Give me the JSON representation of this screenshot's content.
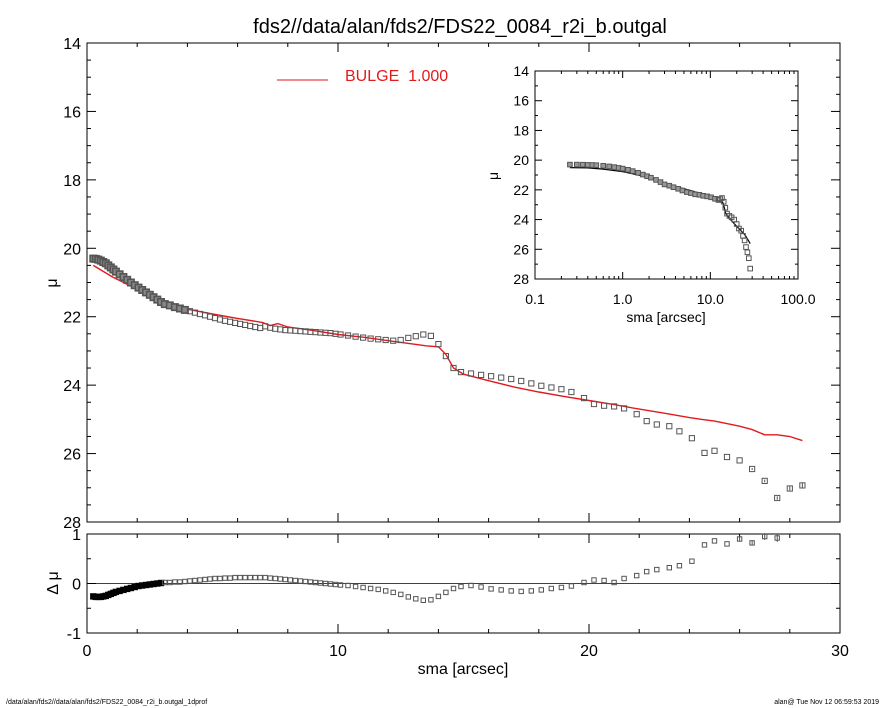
{
  "title": "fds2//data/alan/fds2/FDS22_0084_r2i_b.outgal",
  "footer": {
    "left": "/data/alan/fds2//data/alan/fds2/FDS22_0084_r2i_b.outgal_1dprof",
    "right": "alan@  Tue Nov 12 06:59:53 2019"
  },
  "colors": {
    "model": "#e31a1c",
    "data": "#555555",
    "axis": "#000000"
  },
  "chart_data": [
    {
      "name": "main-profile",
      "type": "scatter",
      "xlabel": "",
      "ylabel": "μ",
      "xlim": [
        0,
        30
      ],
      "ylim": [
        28,
        14
      ],
      "y_inverted": true,
      "yticks": [
        "14",
        "16",
        "18",
        "20",
        "22",
        "24",
        "26",
        "28"
      ],
      "legend": {
        "label": "BULGE  1.000",
        "placement": "top-center"
      },
      "series": [
        {
          "name": "data",
          "marker": "open-square",
          "x": [
            0.25,
            0.35,
            0.45,
            0.55,
            0.65,
            0.75,
            0.85,
            0.95,
            1.05,
            1.15,
            1.3,
            1.45,
            1.6,
            1.75,
            1.9,
            2.05,
            2.2,
            2.35,
            2.5,
            2.65,
            2.8,
            2.95,
            3.1,
            3.3,
            3.5,
            3.7,
            3.9,
            4.1,
            4.3,
            4.5,
            4.7,
            4.9,
            5.1,
            5.3,
            5.5,
            5.7,
            5.9,
            6.1,
            6.3,
            6.5,
            6.7,
            6.9,
            7.1,
            7.3,
            7.5,
            7.7,
            7.9,
            8.1,
            8.3,
            8.5,
            8.7,
            8.9,
            9.1,
            9.3,
            9.5,
            9.7,
            9.9,
            10.1,
            10.4,
            10.7,
            11.0,
            11.3,
            11.6,
            11.9,
            12.2,
            12.5,
            12.8,
            13.1,
            13.4,
            13.7,
            14.0,
            14.3,
            14.6,
            14.9,
            15.3,
            15.7,
            16.1,
            16.5,
            16.9,
            17.3,
            17.7,
            18.1,
            18.5,
            18.9,
            19.3,
            19.8,
            20.2,
            20.6,
            21.0,
            21.4,
            21.9,
            22.3,
            22.7,
            23.2,
            23.6,
            24.1,
            24.6,
            25.0,
            25.5,
            26.0,
            26.5,
            27.0,
            27.5,
            28.0,
            28.5
          ],
          "y": [
            20.3,
            20.31,
            20.33,
            20.36,
            20.4,
            20.44,
            20.5,
            20.56,
            20.62,
            20.68,
            20.76,
            20.84,
            20.92,
            21.0,
            21.08,
            21.15,
            21.22,
            21.29,
            21.36,
            21.43,
            21.5,
            21.57,
            21.63,
            21.67,
            21.72,
            21.76,
            21.8,
            21.84,
            21.88,
            21.92,
            21.96,
            22.0,
            22.04,
            22.08,
            22.12,
            22.15,
            22.18,
            22.21,
            22.24,
            22.27,
            22.3,
            22.33,
            22.28,
            22.32,
            22.35,
            22.37,
            22.39,
            22.4,
            22.41,
            22.42,
            22.43,
            22.44,
            22.45,
            22.46,
            22.47,
            22.48,
            22.5,
            22.52,
            22.55,
            22.58,
            22.61,
            22.64,
            22.66,
            22.68,
            22.7,
            22.68,
            22.62,
            22.57,
            22.52,
            22.56,
            22.8,
            23.15,
            23.5,
            23.62,
            23.66,
            23.7,
            23.74,
            23.78,
            23.82,
            23.88,
            23.95,
            24.02,
            24.07,
            24.12,
            24.2,
            24.38,
            24.55,
            24.6,
            24.62,
            24.68,
            24.85,
            25.05,
            25.15,
            25.2,
            25.35,
            25.55,
            25.98,
            25.92,
            26.1,
            26.2,
            26.45,
            26.8,
            27.3,
            27.02,
            26.93
          ],
          "err": [
            0,
            0,
            0,
            0,
            0,
            0,
            0,
            0,
            0,
            0,
            0,
            0,
            0,
            0,
            0,
            0,
            0,
            0,
            0,
            0,
            0,
            0,
            0,
            0,
            0,
            0,
            0,
            0,
            0,
            0,
            0,
            0,
            0,
            0,
            0,
            0,
            0,
            0,
            0,
            0,
            0,
            0,
            0,
            0,
            0,
            0,
            0,
            0,
            0,
            0,
            0,
            0,
            0,
            0,
            0,
            0,
            0,
            0,
            0,
            0,
            0,
            0,
            0,
            0,
            0,
            0,
            0,
            0,
            0,
            0,
            0,
            0,
            0,
            0,
            0,
            0,
            0,
            0,
            0,
            0,
            0,
            0,
            0,
            0,
            0,
            0,
            0,
            0,
            0,
            0,
            0,
            0,
            0,
            0,
            0,
            0,
            0,
            0,
            0,
            0,
            0.03,
            0.04,
            0.05,
            0.06,
            0.08
          ]
        },
        {
          "name": "BULGE",
          "marker": "line",
          "x": [
            0.25,
            1.0,
            2.0,
            3.0,
            3.3,
            4.0,
            5.0,
            6.0,
            7.0,
            7.3,
            7.6,
            8.0,
            9.0,
            10.0,
            11.0,
            12.0,
            13.0,
            13.5,
            14.0,
            14.3,
            14.6,
            15.0,
            16.0,
            17.0,
            18.0,
            19.0,
            20.0,
            21.0,
            22.0,
            23.0,
            24.0,
            24.5,
            25.0,
            26.0,
            26.5,
            27.0,
            27.5,
            28.0,
            28.5
          ],
          "y": [
            20.5,
            20.83,
            21.2,
            21.55,
            21.68,
            21.78,
            21.92,
            22.05,
            22.17,
            22.26,
            22.2,
            22.3,
            22.4,
            22.52,
            22.6,
            22.7,
            22.8,
            22.85,
            22.88,
            23.1,
            23.5,
            23.68,
            23.87,
            24.05,
            24.2,
            24.33,
            24.45,
            24.57,
            24.7,
            24.82,
            24.95,
            25.0,
            25.05,
            25.2,
            25.3,
            25.45,
            25.45,
            25.5,
            25.62
          ]
        }
      ]
    },
    {
      "name": "residual",
      "type": "scatter",
      "xlabel": "sma [arcsec]",
      "ylabel": "Δ μ",
      "xlim": [
        0,
        30
      ],
      "ylim": [
        -1,
        1
      ],
      "yticks": [
        "-1",
        "0",
        "1"
      ],
      "xticks": [
        "0",
        "10",
        "20",
        "30"
      ],
      "zero_line": true,
      "series": [
        {
          "name": "residual",
          "marker": "open-square",
          "x": [
            0.25,
            0.35,
            0.45,
            0.55,
            0.65,
            0.75,
            0.85,
            0.95,
            1.05,
            1.15,
            1.3,
            1.45,
            1.6,
            1.75,
            1.9,
            2.05,
            2.2,
            2.35,
            2.5,
            2.65,
            2.8,
            2.95,
            3.1,
            3.3,
            3.5,
            3.7,
            3.9,
            4.1,
            4.3,
            4.5,
            4.7,
            4.9,
            5.1,
            5.3,
            5.5,
            5.7,
            5.9,
            6.1,
            6.3,
            6.5,
            6.7,
            6.9,
            7.1,
            7.3,
            7.5,
            7.7,
            7.9,
            8.1,
            8.3,
            8.5,
            8.7,
            8.9,
            9.1,
            9.3,
            9.5,
            9.7,
            9.9,
            10.1,
            10.4,
            10.7,
            11.0,
            11.3,
            11.6,
            11.9,
            12.2,
            12.5,
            12.8,
            13.1,
            13.4,
            13.7,
            14.0,
            14.3,
            14.6,
            14.9,
            15.3,
            15.7,
            16.1,
            16.5,
            16.9,
            17.3,
            17.7,
            18.1,
            18.5,
            18.9,
            19.3,
            19.8,
            20.2,
            20.6,
            21.0,
            21.4,
            21.9,
            22.3,
            22.7,
            23.2,
            23.6,
            24.1,
            24.6,
            25.0,
            25.5,
            26.0,
            26.5,
            27.0,
            27.5
          ],
          "y": [
            -0.26,
            -0.27,
            -0.27,
            -0.27,
            -0.26,
            -0.25,
            -0.23,
            -0.21,
            -0.19,
            -0.17,
            -0.15,
            -0.13,
            -0.11,
            -0.09,
            -0.07,
            -0.05,
            -0.04,
            -0.03,
            -0.02,
            -0.01,
            0.0,
            0.01,
            0.02,
            0.02,
            0.03,
            0.03,
            0.04,
            0.05,
            0.06,
            0.07,
            0.08,
            0.09,
            0.1,
            0.1,
            0.11,
            0.11,
            0.12,
            0.12,
            0.12,
            0.12,
            0.12,
            0.12,
            0.12,
            0.11,
            0.1,
            0.09,
            0.08,
            0.07,
            0.06,
            0.05,
            0.04,
            0.03,
            0.02,
            0.01,
            0.0,
            -0.01,
            -0.02,
            -0.03,
            -0.04,
            -0.06,
            -0.08,
            -0.1,
            -0.12,
            -0.15,
            -0.18,
            -0.22,
            -0.27,
            -0.31,
            -0.34,
            -0.33,
            -0.26,
            -0.18,
            -0.1,
            -0.06,
            -0.04,
            -0.07,
            -0.11,
            -0.13,
            -0.15,
            -0.16,
            -0.15,
            -0.13,
            -0.1,
            -0.08,
            -0.05,
            0.02,
            0.07,
            0.06,
            0.02,
            0.1,
            0.16,
            0.24,
            0.28,
            0.32,
            0.36,
            0.45,
            0.78,
            0.86,
            0.8,
            0.9,
            0.82,
            0.95,
            0.92
          ],
          "err": [
            0,
            0,
            0,
            0,
            0,
            0,
            0,
            0,
            0,
            0,
            0,
            0,
            0,
            0,
            0,
            0,
            0,
            0,
            0,
            0,
            0,
            0,
            0,
            0,
            0,
            0,
            0,
            0,
            0,
            0,
            0,
            0,
            0,
            0,
            0,
            0,
            0,
            0,
            0,
            0,
            0,
            0,
            0,
            0,
            0,
            0,
            0,
            0,
            0,
            0,
            0,
            0,
            0,
            0,
            0,
            0,
            0,
            0,
            0,
            0,
            0,
            0,
            0,
            0,
            0,
            0,
            0,
            0,
            0,
            0,
            0,
            0,
            0,
            0,
            0,
            0,
            0,
            0,
            0,
            0,
            0,
            0,
            0,
            0,
            0,
            0,
            0,
            0,
            0,
            0,
            0,
            0,
            0,
            0,
            0,
            0,
            0,
            0,
            0,
            0.04,
            0.05,
            0.07,
            0.08
          ]
        }
      ]
    },
    {
      "name": "inset-log-profile",
      "type": "scatter",
      "xlabel": "sma [arcsec]",
      "ylabel": "μ",
      "xscale": "log",
      "xlim": [
        0.1,
        100.0
      ],
      "ylim": [
        28,
        14
      ],
      "y_inverted": true,
      "yticks": [
        "14",
        "16",
        "18",
        "20",
        "22",
        "24",
        "26",
        "28"
      ],
      "xticks": [
        "0.1",
        "1.0",
        "10.0",
        "100.0"
      ],
      "series": [
        {
          "name": "data",
          "marker": "open-square",
          "x": [
            0.25,
            0.3,
            0.35,
            0.4,
            0.45,
            0.5,
            0.6,
            0.7,
            0.8,
            0.9,
            1.0,
            1.15,
            1.3,
            1.5,
            1.7,
            1.9,
            2.1,
            2.4,
            2.7,
            3.0,
            3.4,
            3.8,
            4.3,
            4.8,
            5.4,
            6.0,
            6.7,
            7.5,
            8.3,
            9.2,
            10.2,
            11.3,
            12.4,
            13.0,
            13.6,
            14.2,
            14.8,
            15.5,
            16.5,
            17.5,
            18.7,
            20.0,
            21.2,
            22.5,
            23.6,
            24.6,
            25.5,
            26.5,
            27.5,
            28.5
          ],
          "y": [
            20.3,
            20.3,
            20.31,
            20.32,
            20.33,
            20.34,
            20.38,
            20.42,
            20.47,
            20.52,
            20.57,
            20.65,
            20.74,
            20.85,
            20.97,
            21.08,
            21.18,
            21.33,
            21.48,
            21.63,
            21.72,
            21.82,
            21.93,
            22.04,
            22.15,
            22.22,
            22.3,
            22.33,
            22.4,
            22.44,
            22.5,
            22.6,
            22.68,
            22.62,
            22.55,
            22.8,
            23.2,
            23.6,
            23.75,
            23.85,
            24.0,
            24.3,
            24.6,
            24.75,
            25.1,
            25.4,
            25.85,
            26.2,
            26.6,
            27.3
          ]
        },
        {
          "name": "model",
          "marker": "line",
          "x": [
            0.25,
            0.4,
            0.6,
            1.0,
            1.5,
            2.0,
            3.0,
            4.0,
            5.0,
            6.0,
            7.0,
            8.0,
            10.0,
            12.0,
            13.0,
            14.0,
            15.0,
            17.0,
            20.0,
            22.0,
            25.0,
            28.5
          ],
          "y": [
            20.5,
            20.52,
            20.6,
            20.78,
            21.0,
            21.2,
            21.55,
            21.78,
            21.92,
            22.05,
            22.17,
            22.3,
            22.52,
            22.7,
            22.8,
            22.88,
            23.6,
            24.0,
            24.45,
            24.7,
            25.05,
            25.62
          ]
        }
      ]
    }
  ]
}
